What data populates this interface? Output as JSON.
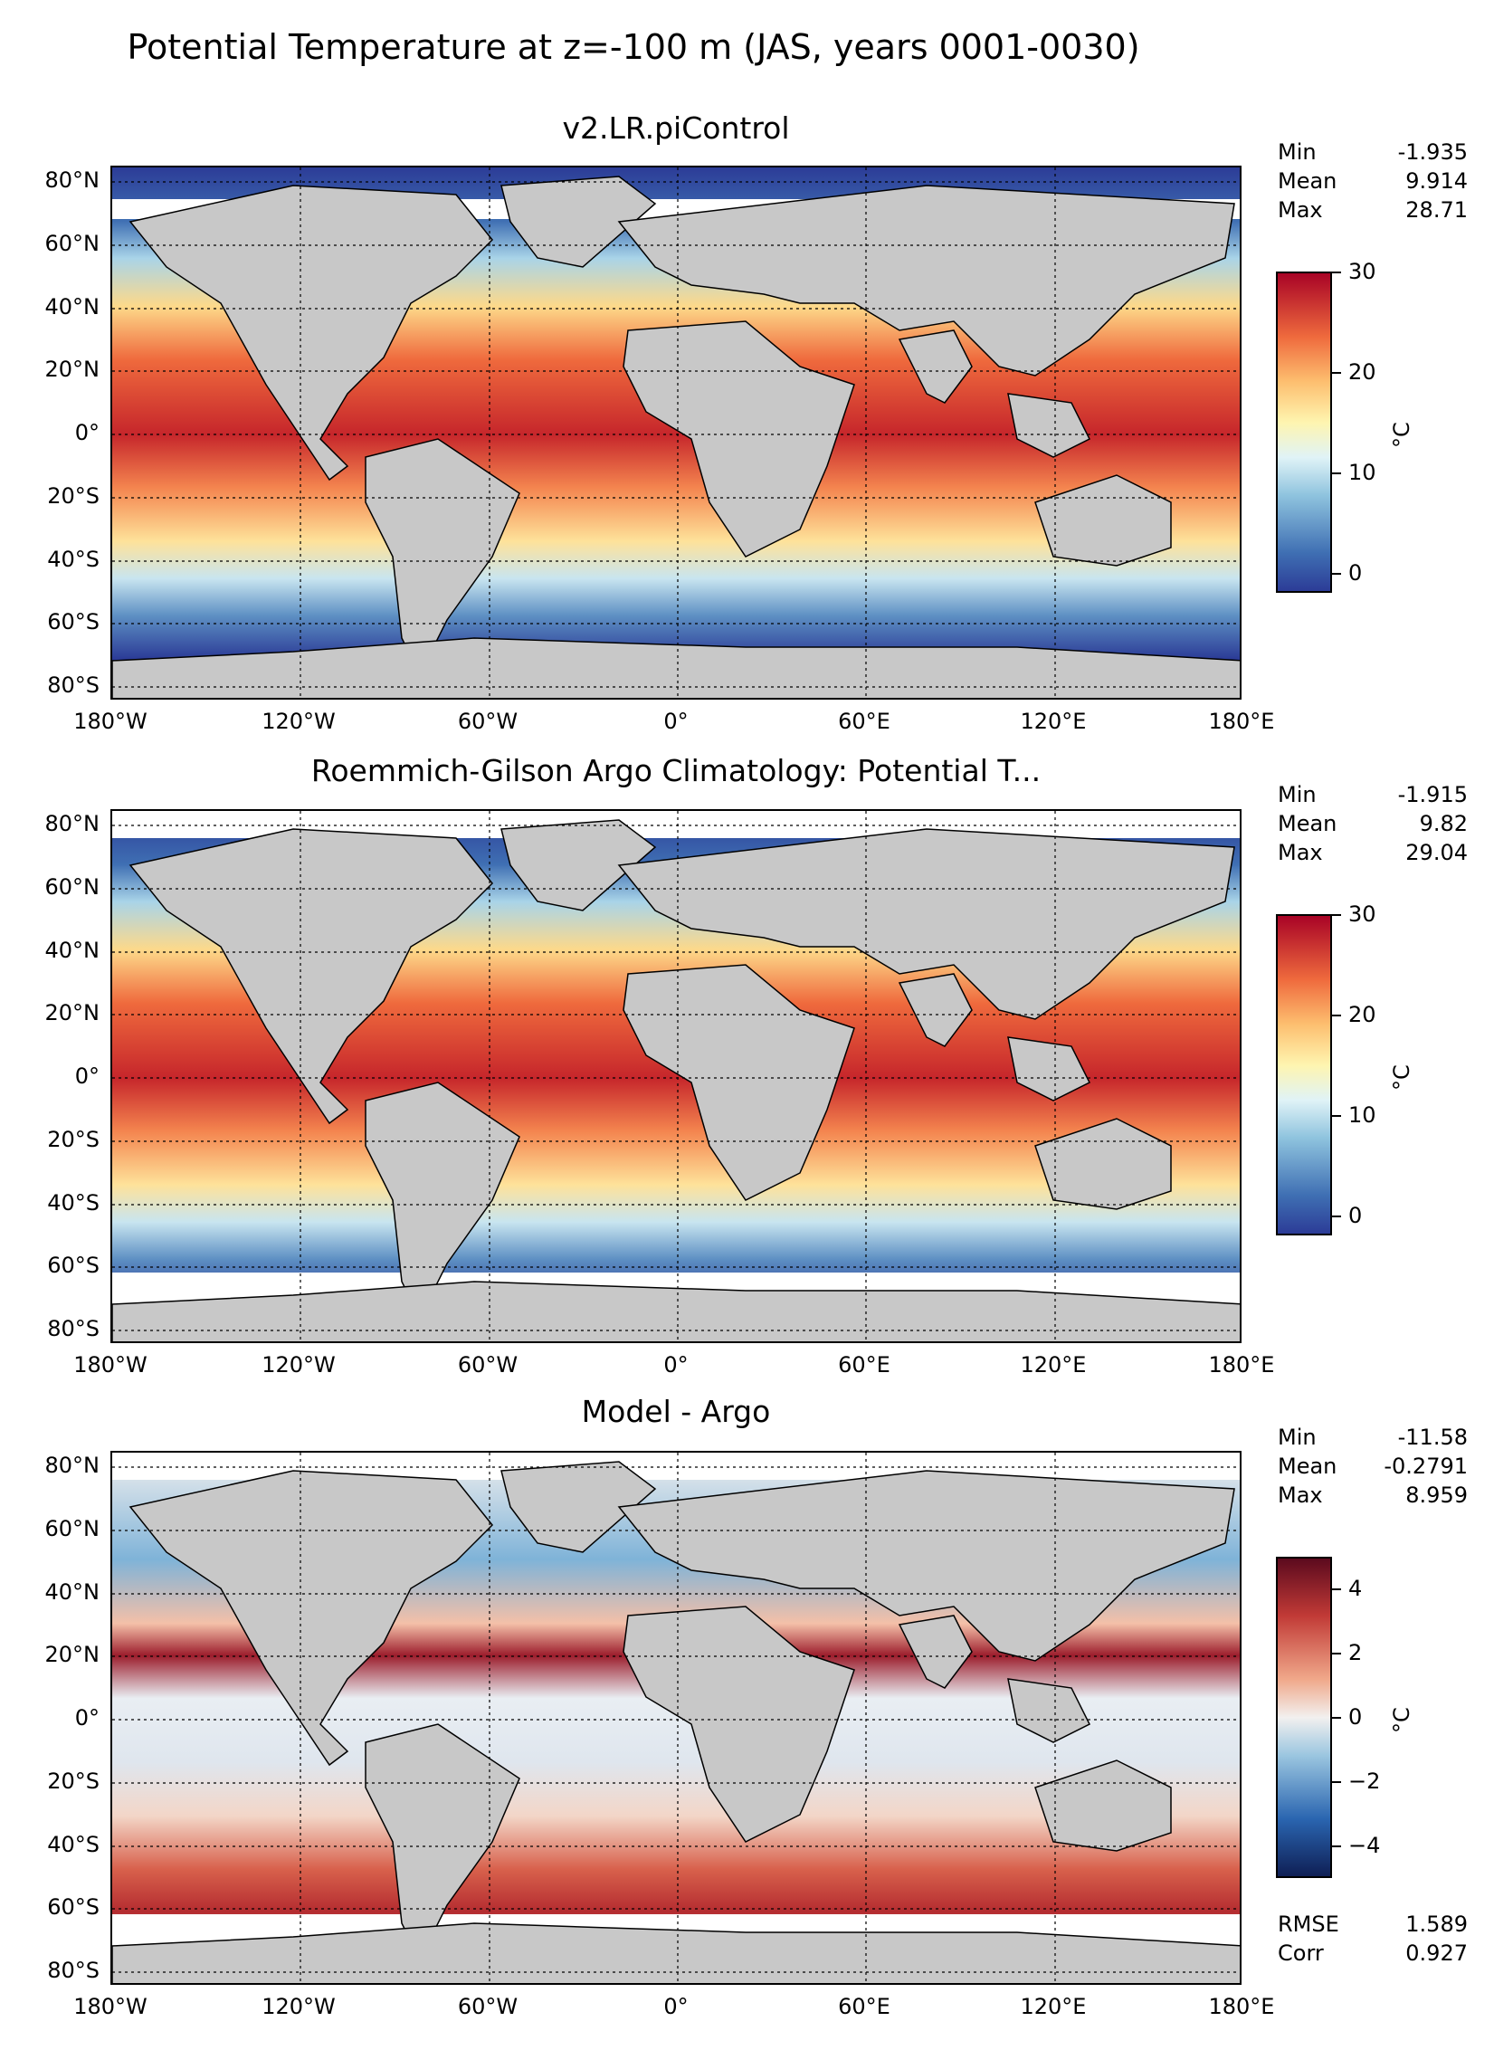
{
  "suptitle": "Potential Temperature at z=-100 m (JAS, years 0001-0030)",
  "lat_labels": [
    "80°N",
    "60°N",
    "40°N",
    "20°N",
    "0°",
    "20°S",
    "40°S",
    "60°S",
    "80°S"
  ],
  "lon_labels": [
    "180°W",
    "120°W",
    "60°W",
    "0°",
    "60°E",
    "120°E",
    "180°E"
  ],
  "colors": {
    "land": "#c8c8c8",
    "nodata": "#ffffff"
  },
  "panels": [
    {
      "title": "v2.LR.piControl",
      "stats": [
        {
          "label": "Min",
          "value": "-1.935"
        },
        {
          "label": "Mean",
          "value": "9.914"
        },
        {
          "label": "Max",
          "value": "28.71"
        }
      ],
      "colorbar": {
        "ticks": [
          "30",
          "20",
          "10",
          "0"
        ],
        "unit": "°C",
        "range": [
          -2,
          30
        ],
        "cmap": "RdYlBu_r"
      }
    },
    {
      "title": "Roemmich-Gilson Argo Climatology: Potential T...",
      "stats": [
        {
          "label": "Min",
          "value": "-1.915"
        },
        {
          "label": "Mean",
          "value": "9.82"
        },
        {
          "label": "Max",
          "value": "29.04"
        }
      ],
      "colorbar": {
        "ticks": [
          "30",
          "20",
          "10",
          "0"
        ],
        "unit": "°C",
        "range": [
          -2,
          30
        ],
        "cmap": "RdYlBu_r"
      }
    },
    {
      "title": "Model - Argo",
      "stats": [
        {
          "label": "Min",
          "value": "-11.58"
        },
        {
          "label": "Mean",
          "value": "-0.2791"
        },
        {
          "label": "Max",
          "value": "8.959"
        }
      ],
      "colorbar": {
        "ticks": [
          "4",
          "2",
          "0",
          "−2",
          "−4"
        ],
        "unit": "°C",
        "range": [
          -5,
          5
        ],
        "cmap": "RdBu_r"
      },
      "extra_stats": [
        {
          "label": "RMSE",
          "value": "1.589"
        },
        {
          "label": "Corr",
          "value": "0.927"
        }
      ]
    }
  ]
}
